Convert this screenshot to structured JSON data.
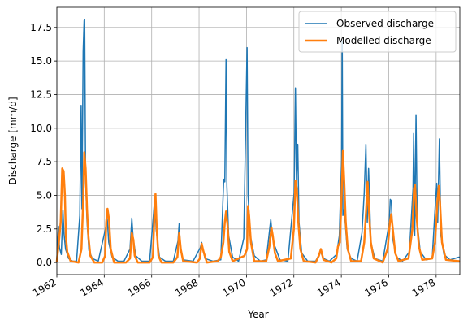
{
  "chart_data": {
    "type": "line",
    "title": "",
    "xlabel": "Year",
    "ylabel": "Discharge [mm/d]",
    "xlim": [
      "1962-01-01",
      "1979-01-01"
    ],
    "ylim": [
      -0.9,
      19.0
    ],
    "x_ticks": [
      "1962",
      "1964",
      "1966",
      "1968",
      "1970",
      "1972",
      "1974",
      "1976",
      "1978"
    ],
    "y_ticks": [
      "0.0",
      "2.5",
      "5.0",
      "7.5",
      "10.0",
      "12.5",
      "15.0",
      "17.5"
    ],
    "grid": true,
    "legend_position": "top-right",
    "colors": {
      "observed": "#1f77b4",
      "modelled": "#ff7f0e"
    },
    "series": [
      {
        "name": "Observed discharge",
        "points": [
          [
            "1962-01-01",
            0.3
          ],
          [
            "1962-01-25",
            2.7
          ],
          [
            "1962-02-10",
            1.1
          ],
          [
            "1962-03-10",
            0.6
          ],
          [
            "1962-04-05",
            3.9
          ],
          [
            "1962-04-20",
            2.2
          ],
          [
            "1962-05-15",
            1.0
          ],
          [
            "1962-07-01",
            0.3
          ],
          [
            "1962-09-01",
            0.1
          ],
          [
            "1962-11-01",
            0.1
          ],
          [
            "1962-12-20",
            3.5
          ],
          [
            "1963-01-10",
            11.7
          ],
          [
            "1963-01-22",
            4.0
          ],
          [
            "1963-02-10",
            15.7
          ],
          [
            "1963-02-25",
            18.0
          ],
          [
            "1963-03-05",
            18.1
          ],
          [
            "1963-03-20",
            6.0
          ],
          [
            "1963-04-10",
            3.1
          ],
          [
            "1963-05-10",
            0.9
          ],
          [
            "1963-07-01",
            0.3
          ],
          [
            "1963-10-01",
            0.1
          ],
          [
            "1964-01-20",
            2.5
          ],
          [
            "1964-02-15",
            3.4
          ],
          [
            "1964-03-10",
            1.5
          ],
          [
            "1964-05-01",
            0.4
          ],
          [
            "1964-08-01",
            0.1
          ],
          [
            "1964-11-01",
            0.1
          ],
          [
            "1965-02-01",
            1.0
          ],
          [
            "1965-03-01",
            3.3
          ],
          [
            "1965-03-20",
            1.9
          ],
          [
            "1965-05-01",
            0.5
          ],
          [
            "1965-08-01",
            0.1
          ],
          [
            "1965-12-01",
            0.1
          ],
          [
            "1966-02-20",
            4.9
          ],
          [
            "1966-03-10",
            2.5
          ],
          [
            "1966-05-01",
            0.4
          ],
          [
            "1966-08-01",
            0.1
          ],
          [
            "1966-12-01",
            0.1
          ],
          [
            "1967-02-10",
            1.6
          ],
          [
            "1967-03-01",
            2.9
          ],
          [
            "1967-03-20",
            1.0
          ],
          [
            "1967-05-01",
            0.2
          ],
          [
            "1967-10-01",
            0.1
          ],
          [
            "1968-01-20",
            1.1
          ],
          [
            "1968-02-10",
            1.5
          ],
          [
            "1968-04-01",
            0.3
          ],
          [
            "1968-08-01",
            0.1
          ],
          [
            "1968-12-01",
            0.2
          ],
          [
            "1969-01-15",
            6.2
          ],
          [
            "1969-02-01",
            6.0
          ],
          [
            "1969-02-20",
            15.1
          ],
          [
            "1969-03-05",
            5.7
          ],
          [
            "1969-04-01",
            2.0
          ],
          [
            "1969-06-01",
            0.4
          ],
          [
            "1969-09-01",
            0.1
          ],
          [
            "1969-11-20",
            1.8
          ],
          [
            "1970-01-10",
            16.0
          ],
          [
            "1970-01-25",
            5.0
          ],
          [
            "1970-03-01",
            2.0
          ],
          [
            "1970-05-01",
            0.5
          ],
          [
            "1970-08-01",
            0.1
          ],
          [
            "1970-11-01",
            0.2
          ],
          [
            "1971-01-10",
            3.2
          ],
          [
            "1971-02-01",
            2.0
          ],
          [
            "1971-03-15",
            1.2
          ],
          [
            "1971-06-01",
            0.2
          ],
          [
            "1971-10-01",
            0.1
          ],
          [
            "1972-01-05",
            5.2
          ],
          [
            "1972-01-25",
            13.0
          ],
          [
            "1972-02-10",
            6.0
          ],
          [
            "1972-03-01",
            8.8
          ],
          [
            "1972-03-20",
            3.0
          ],
          [
            "1972-05-01",
            0.7
          ],
          [
            "1972-08-01",
            0.1
          ],
          [
            "1972-12-01",
            0.1
          ],
          [
            "1973-02-15",
            0.8
          ],
          [
            "1973-04-01",
            0.3
          ],
          [
            "1973-07-01",
            0.1
          ],
          [
            "1973-10-20",
            0.6
          ],
          [
            "1973-12-01",
            2.0
          ],
          [
            "1974-01-05",
            7.6
          ],
          [
            "1974-01-15",
            16.5
          ],
          [
            "1974-01-25",
            3.5
          ],
          [
            "1974-02-15",
            4.0
          ],
          [
            "1974-04-01",
            1.0
          ],
          [
            "1974-06-01",
            0.3
          ],
          [
            "1974-09-01",
            0.1
          ],
          [
            "1974-11-15",
            2.2
          ],
          [
            "1974-12-20",
            5.2
          ],
          [
            "1975-01-15",
            8.8
          ],
          [
            "1975-02-05",
            3.0
          ],
          [
            "1975-02-25",
            7.0
          ],
          [
            "1975-04-01",
            1.5
          ],
          [
            "1975-06-01",
            0.3
          ],
          [
            "1975-10-01",
            0.1
          ],
          [
            "1976-01-10",
            3.0
          ],
          [
            "1976-01-25",
            4.7
          ],
          [
            "1976-02-10",
            4.6
          ],
          [
            "1976-03-05",
            1.7
          ],
          [
            "1976-05-01",
            0.4
          ],
          [
            "1976-08-01",
            0.1
          ],
          [
            "1976-11-15",
            0.8
          ],
          [
            "1977-01-10",
            5.5
          ],
          [
            "1977-01-20",
            9.6
          ],
          [
            "1977-02-05",
            2.0
          ],
          [
            "1977-02-25",
            11.0
          ],
          [
            "1977-03-15",
            3.0
          ],
          [
            "1977-05-01",
            0.8
          ],
          [
            "1977-08-01",
            0.2
          ],
          [
            "1977-11-01",
            0.3
          ],
          [
            "1977-12-20",
            4.4
          ],
          [
            "1978-01-10",
            5.9
          ],
          [
            "1978-01-25",
            3.0
          ],
          [
            "1978-02-20",
            9.2
          ],
          [
            "1978-03-15",
            2.0
          ],
          [
            "1978-05-01",
            0.6
          ],
          [
            "1978-08-01",
            0.2
          ],
          [
            "1978-12-20",
            0.4
          ]
        ]
      },
      {
        "name": "Modelled discharge",
        "points": [
          [
            "1962-01-01",
            0.1
          ],
          [
            "1962-02-01",
            1.5
          ],
          [
            "1962-03-01",
            3.0
          ],
          [
            "1962-03-25",
            7.0
          ],
          [
            "1962-04-15",
            6.8
          ],
          [
            "1962-05-05",
            5.0
          ],
          [
            "1962-05-20",
            2.0
          ],
          [
            "1962-06-10",
            0.8
          ],
          [
            "1962-08-01",
            0.1
          ],
          [
            "1962-12-01",
            0.0
          ],
          [
            "1963-01-15",
            1.0
          ],
          [
            "1963-02-10",
            4.5
          ],
          [
            "1963-02-28",
            8.2
          ],
          [
            "1963-03-20",
            7.0
          ],
          [
            "1963-04-10",
            4.0
          ],
          [
            "1963-05-01",
            2.0
          ],
          [
            "1963-06-01",
            0.5
          ],
          [
            "1963-08-01",
            0.0
          ],
          [
            "1963-12-01",
            0.0
          ],
          [
            "1964-01-15",
            0.5
          ],
          [
            "1964-02-01",
            3.0
          ],
          [
            "1964-02-20",
            4.0
          ],
          [
            "1964-03-15",
            3.2
          ],
          [
            "1964-04-10",
            1.0
          ],
          [
            "1964-06-01",
            0.0
          ],
          [
            "1964-12-01",
            0.0
          ],
          [
            "1965-02-01",
            0.3
          ],
          [
            "1965-03-01",
            2.2
          ],
          [
            "1965-03-25",
            1.7
          ],
          [
            "1965-04-15",
            0.5
          ],
          [
            "1965-06-01",
            0.0
          ],
          [
            "1965-12-01",
            0.0
          ],
          [
            "1966-01-20",
            0.4
          ],
          [
            "1966-02-15",
            4.0
          ],
          [
            "1966-03-01",
            5.1
          ],
          [
            "1966-03-20",
            2.5
          ],
          [
            "1966-04-15",
            0.5
          ],
          [
            "1966-06-01",
            0.0
          ],
          [
            "1966-12-01",
            0.0
          ],
          [
            "1967-02-01",
            0.4
          ],
          [
            "1967-03-01",
            2.2
          ],
          [
            "1967-03-25",
            1.0
          ],
          [
            "1967-05-01",
            0.1
          ],
          [
            "1967-12-01",
            0.0
          ],
          [
            "1968-01-15",
            0.3
          ],
          [
            "1968-02-10",
            1.4
          ],
          [
            "1968-03-10",
            0.8
          ],
          [
            "1968-05-01",
            0.0
          ],
          [
            "1968-10-15",
            0.1
          ],
          [
            "1968-12-01",
            0.4
          ],
          [
            "1969-01-10",
            1.5
          ],
          [
            "1969-02-01",
            3.0
          ],
          [
            "1969-02-20",
            3.8
          ],
          [
            "1969-03-15",
            2.8
          ],
          [
            "1969-04-10",
            0.8
          ],
          [
            "1969-06-01",
            0.1
          ],
          [
            "1969-12-01",
            0.5
          ],
          [
            "1970-01-10",
            1.0
          ],
          [
            "1970-01-25",
            4.2
          ],
          [
            "1970-02-10",
            3.5
          ],
          [
            "1970-03-10",
            1.5
          ],
          [
            "1970-05-01",
            0.1
          ],
          [
            "1970-11-01",
            0.1
          ],
          [
            "1970-12-20",
            1.2
          ],
          [
            "1971-01-20",
            2.6
          ],
          [
            "1971-02-10",
            2.0
          ],
          [
            "1971-03-15",
            0.7
          ],
          [
            "1971-05-01",
            0.1
          ],
          [
            "1971-11-15",
            0.3
          ],
          [
            "1972-01-01",
            2.5
          ],
          [
            "1972-01-25",
            6.1
          ],
          [
            "1972-02-15",
            5.5
          ],
          [
            "1972-03-10",
            3.0
          ],
          [
            "1972-04-10",
            1.0
          ],
          [
            "1972-06-01",
            0.1
          ],
          [
            "1972-12-01",
            0.0
          ],
          [
            "1973-01-20",
            0.5
          ],
          [
            "1973-02-20",
            1.0
          ],
          [
            "1973-04-01",
            0.2
          ],
          [
            "1973-08-01",
            0.0
          ],
          [
            "1973-10-15",
            0.3
          ],
          [
            "1973-11-10",
            1.2
          ],
          [
            "1973-12-10",
            1.5
          ],
          [
            "1974-01-05",
            5.0
          ],
          [
            "1974-01-25",
            8.3
          ],
          [
            "1974-02-15",
            6.0
          ],
          [
            "1974-03-10",
            3.0
          ],
          [
            "1974-04-10",
            1.0
          ],
          [
            "1974-06-01",
            0.1
          ],
          [
            "1974-11-01",
            0.1
          ],
          [
            "1974-12-20",
            1.5
          ],
          [
            "1975-01-20",
            4.0
          ],
          [
            "1975-02-10",
            6.0
          ],
          [
            "1975-03-01",
            4.0
          ],
          [
            "1975-04-01",
            1.5
          ],
          [
            "1975-05-15",
            0.3
          ],
          [
            "1975-10-01",
            0.0
          ],
          [
            "1975-12-15",
            1.0
          ],
          [
            "1976-01-20",
            3.0
          ],
          [
            "1976-02-10",
            3.6
          ],
          [
            "1976-03-10",
            2.2
          ],
          [
            "1976-04-10",
            0.7
          ],
          [
            "1976-06-01",
            0.1
          ],
          [
            "1976-11-01",
            0.3
          ],
          [
            "1977-01-01",
            2.5
          ],
          [
            "1977-01-25",
            5.5
          ],
          [
            "1977-02-10",
            5.8
          ],
          [
            "1977-03-05",
            3.5
          ],
          [
            "1977-04-10",
            1.2
          ],
          [
            "1977-06-01",
            0.2
          ],
          [
            "1977-11-01",
            0.3
          ],
          [
            "1977-12-15",
            1.5
          ],
          [
            "1978-01-20",
            4.5
          ],
          [
            "1978-02-10",
            5.7
          ],
          [
            "1978-03-01",
            4.5
          ],
          [
            "1978-04-01",
            1.5
          ],
          [
            "1978-06-01",
            0.2
          ],
          [
            "1978-12-20",
            0.1
          ]
        ]
      }
    ]
  }
}
